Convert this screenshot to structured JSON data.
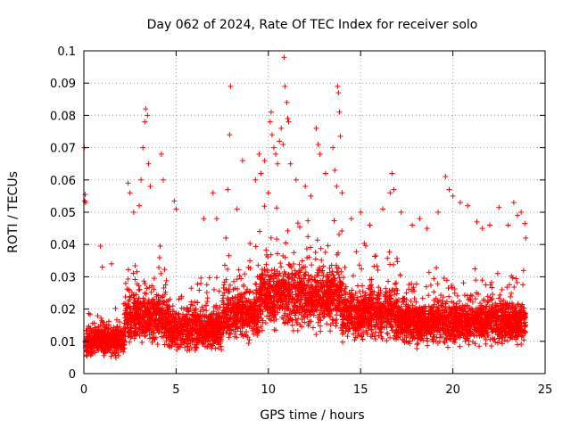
{
  "chart_data": {
    "type": "scatter",
    "title": "Day 062 of 2024, Rate Of TEC Index for receiver solo",
    "xlabel": "GPS time / hours",
    "ylabel": "ROTI / TECUs",
    "xlim": [
      0,
      25
    ],
    "ylim": [
      0,
      0.1
    ],
    "xticks": [
      0,
      5,
      10,
      15,
      20,
      25
    ],
    "yticks": [
      0,
      0.01,
      0.02,
      0.03,
      0.04,
      0.05,
      0.06,
      0.07,
      0.08,
      0.09,
      0.1
    ],
    "xtick_labels": [
      "0",
      "5",
      "10",
      "15",
      "20",
      "25"
    ],
    "ytick_labels": [
      "0",
      "0.01",
      "0.02",
      "0.03",
      "0.04",
      "0.05",
      "0.06",
      "0.07",
      "0.08",
      "0.09",
      "0.1"
    ],
    "grid": true,
    "marker": "+",
    "color": "#ff0000",
    "series": [
      {
        "points": [
          [
            0.02,
            0.07
          ],
          [
            0.05,
            0.0535
          ],
          [
            0.07,
            0.0555
          ],
          [
            0.1,
            0.053
          ],
          [
            0.9,
            0.0395
          ],
          [
            1.0,
            0.033
          ],
          [
            1.5,
            0.034
          ],
          [
            2.4,
            0.059
          ],
          [
            2.5,
            0.056
          ],
          [
            2.7,
            0.05
          ],
          [
            3.0,
            0.052
          ],
          [
            3.1,
            0.06
          ],
          [
            3.2,
            0.07
          ],
          [
            3.3,
            0.078
          ],
          [
            3.35,
            0.082
          ],
          [
            3.45,
            0.08
          ],
          [
            3.5,
            0.065
          ],
          [
            3.6,
            0.058
          ],
          [
            4.2,
            0.068
          ],
          [
            4.3,
            0.06
          ],
          [
            4.9,
            0.0535
          ],
          [
            5.0,
            0.051
          ],
          [
            6.5,
            0.048
          ],
          [
            7.0,
            0.056
          ],
          [
            7.2,
            0.048
          ],
          [
            7.7,
            0.042
          ],
          [
            7.8,
            0.057
          ],
          [
            7.9,
            0.074
          ],
          [
            7.95,
            0.089
          ],
          [
            8.3,
            0.051
          ],
          [
            8.6,
            0.066
          ],
          [
            9.3,
            0.06
          ],
          [
            9.5,
            0.068
          ],
          [
            9.6,
            0.062
          ],
          [
            9.8,
            0.066
          ],
          [
            10.0,
            0.056
          ],
          [
            10.1,
            0.078
          ],
          [
            10.15,
            0.081
          ],
          [
            10.2,
            0.074
          ],
          [
            10.3,
            0.07
          ],
          [
            10.4,
            0.068
          ],
          [
            10.5,
            0.065
          ],
          [
            10.6,
            0.072
          ],
          [
            10.7,
            0.076
          ],
          [
            10.8,
            0.071
          ],
          [
            10.85,
            0.098
          ],
          [
            10.9,
            0.089
          ],
          [
            11.0,
            0.084
          ],
          [
            11.05,
            0.079
          ],
          [
            11.1,
            0.078
          ],
          [
            11.2,
            0.065
          ],
          [
            11.5,
            0.06
          ],
          [
            12.0,
            0.058
          ],
          [
            12.3,
            0.055
          ],
          [
            12.6,
            0.076
          ],
          [
            12.7,
            0.071
          ],
          [
            12.8,
            0.068
          ],
          [
            13.1,
            0.062
          ],
          [
            13.5,
            0.07
          ],
          [
            13.6,
            0.063
          ],
          [
            13.7,
            0.058
          ],
          [
            13.75,
            0.089
          ],
          [
            13.8,
            0.087
          ],
          [
            13.85,
            0.081
          ],
          [
            13.9,
            0.0735
          ],
          [
            14.0,
            0.056
          ],
          [
            14.5,
            0.048
          ],
          [
            15.0,
            0.05
          ],
          [
            15.5,
            0.046
          ],
          [
            16.2,
            0.051
          ],
          [
            16.6,
            0.056
          ],
          [
            16.7,
            0.062
          ],
          [
            16.8,
            0.057
          ],
          [
            17.2,
            0.05
          ],
          [
            17.8,
            0.046
          ],
          [
            18.2,
            0.048
          ],
          [
            18.6,
            0.045
          ],
          [
            19.2,
            0.05
          ],
          [
            19.6,
            0.061
          ],
          [
            19.8,
            0.057
          ],
          [
            20.0,
            0.055
          ],
          [
            20.4,
            0.053
          ],
          [
            20.8,
            0.052
          ],
          [
            21.3,
            0.047
          ],
          [
            21.6,
            0.045
          ],
          [
            22.0,
            0.046
          ],
          [
            22.5,
            0.0515
          ],
          [
            23.0,
            0.046
          ],
          [
            23.3,
            0.053
          ],
          [
            23.5,
            0.049
          ],
          [
            23.7,
            0.05
          ],
          [
            23.9,
            0.0465
          ],
          [
            23.95,
            0.042
          ]
        ]
      }
    ]
  }
}
